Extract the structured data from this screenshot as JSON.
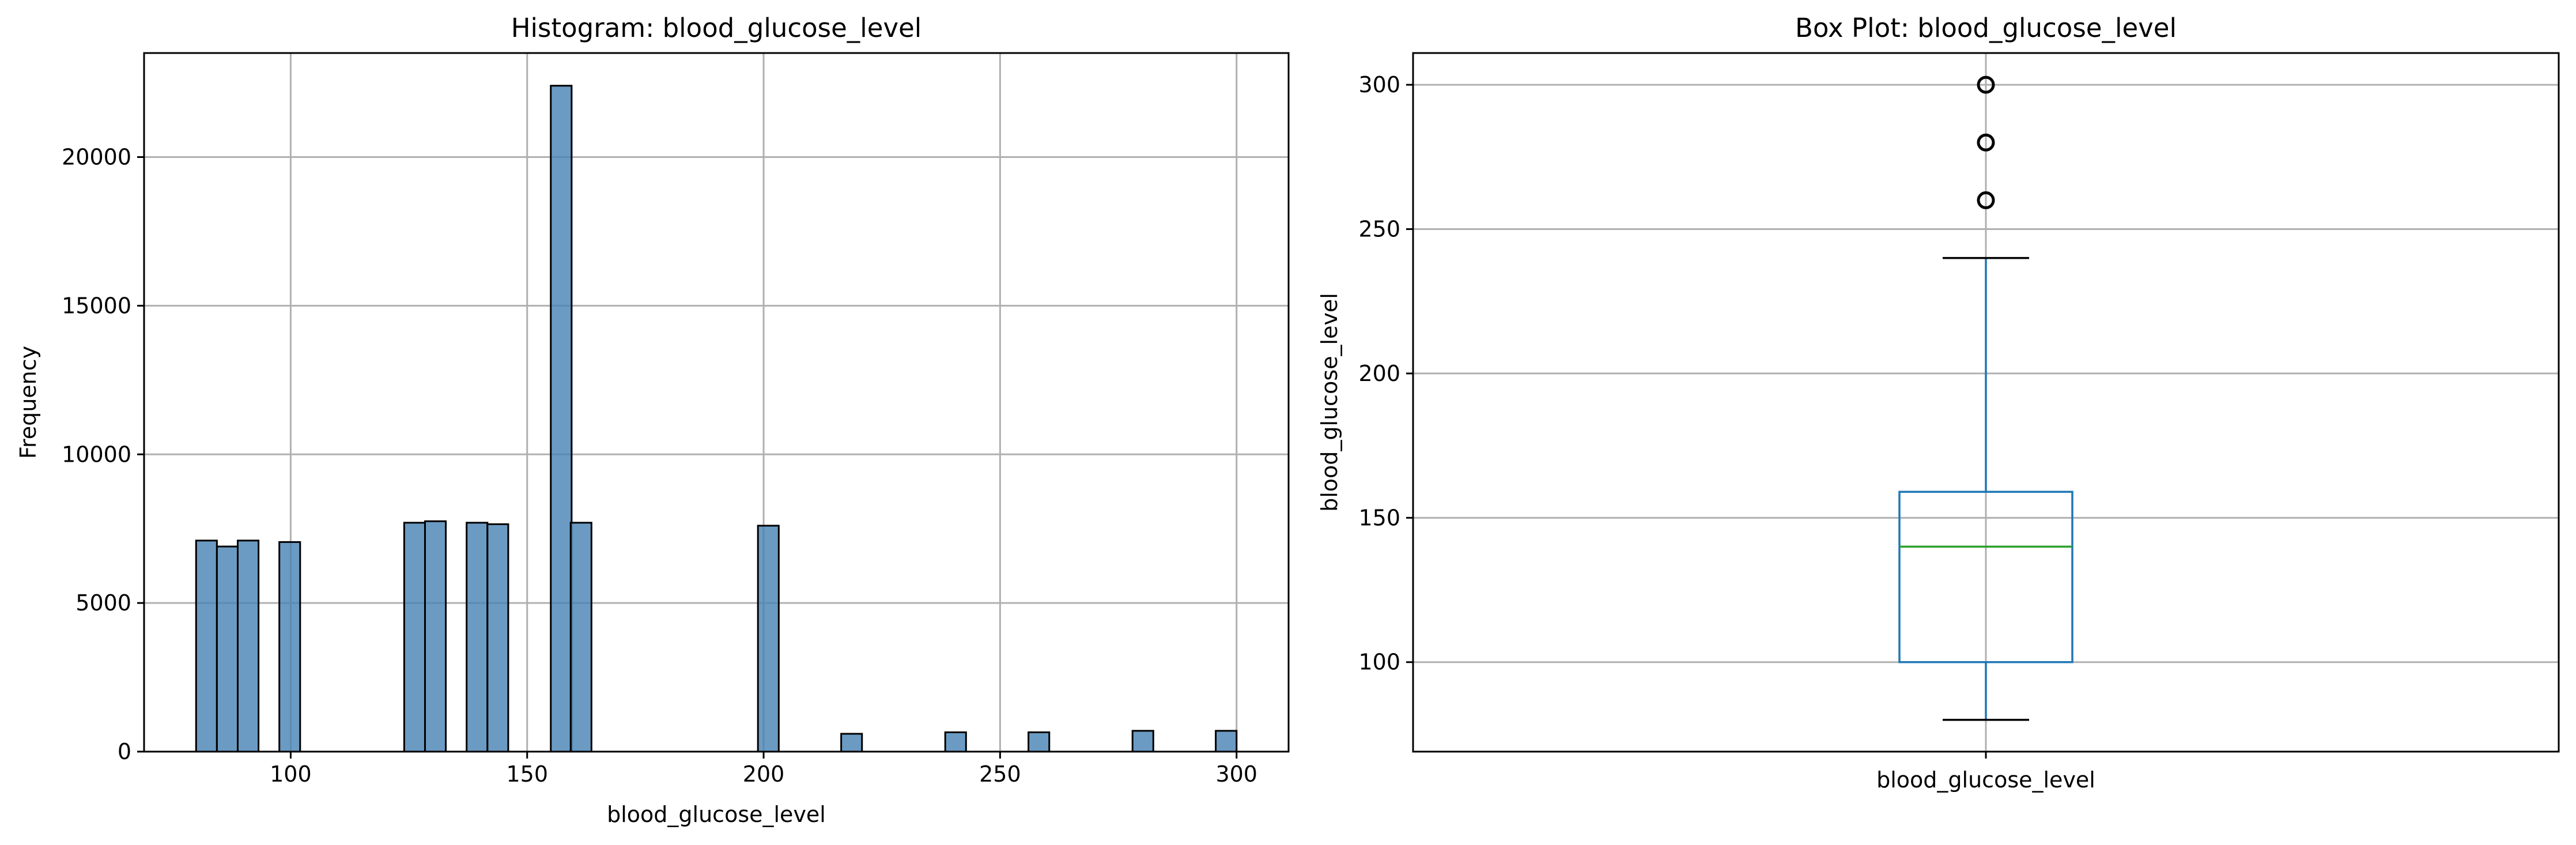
{
  "chart_data": [
    {
      "type": "bar",
      "title": "Histogram: blood_glucose_level",
      "xlabel": "blood_glucose_level",
      "ylabel": "Frequency",
      "xlim": [
        69,
        311
      ],
      "ylim": [
        0,
        23500
      ],
      "xticks": [
        100,
        150,
        200,
        250,
        300
      ],
      "yticks": [
        0,
        5000,
        10000,
        15000,
        20000
      ],
      "grid": true,
      "bar_color": "#4682b4",
      "bar_edge_color": "#000000",
      "bin_width": 4.4,
      "bins": [
        {
          "start": 80.0,
          "count": 7100
        },
        {
          "start": 84.4,
          "count": 6900
        },
        {
          "start": 88.8,
          "count": 7100
        },
        {
          "start": 97.6,
          "count": 7050
        },
        {
          "start": 124.0,
          "count": 7700
        },
        {
          "start": 128.4,
          "count": 7750
        },
        {
          "start": 137.2,
          "count": 7700
        },
        {
          "start": 141.6,
          "count": 7650
        },
        {
          "start": 155.0,
          "count": 22400
        },
        {
          "start": 159.2,
          "count": 7700
        },
        {
          "start": 198.8,
          "count": 7600
        },
        {
          "start": 216.4,
          "count": 600
        },
        {
          "start": 238.4,
          "count": 650
        },
        {
          "start": 256.0,
          "count": 650
        },
        {
          "start": 278.0,
          "count": 700
        },
        {
          "start": 295.6,
          "count": 700
        }
      ]
    },
    {
      "type": "box",
      "title": "Box Plot: blood_glucose_level",
      "ylabel": "blood_glucose_level",
      "category": "blood_glucose_level",
      "ylim": [
        69,
        311
      ],
      "yticks": [
        100,
        150,
        200,
        250,
        300
      ],
      "grid": true,
      "box_color": "#1f77b4",
      "median_color": "#2ca02c",
      "stats": {
        "whisker_low": 80,
        "q1": 100,
        "median": 140,
        "q3": 159,
        "whisker_high": 240,
        "outliers": [
          260,
          280,
          300
        ]
      }
    }
  ]
}
